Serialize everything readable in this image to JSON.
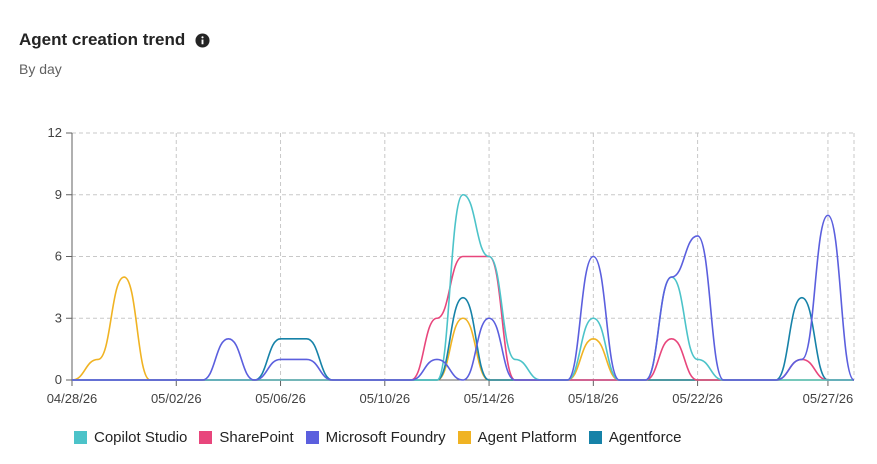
{
  "header": {
    "title": "Agent creation trend",
    "subtitle": "By day",
    "info_icon": "info-icon"
  },
  "chart_data": {
    "type": "line",
    "title": "Agent creation trend",
    "subtitle": "By day",
    "xlabel": "",
    "ylabel": "",
    "ylim": [
      0,
      12
    ],
    "yticks": [
      "0",
      "3",
      "6",
      "9",
      "12"
    ],
    "xticks": [
      {
        "date": "2026-04-28",
        "label": "04/28/26"
      },
      {
        "date": "2026-05-02",
        "label": "05/02/26"
      },
      {
        "date": "2026-05-06",
        "label": "05/06/26"
      },
      {
        "date": "2026-05-10",
        "label": "05/10/26"
      },
      {
        "date": "2026-05-14",
        "label": "05/14/26"
      },
      {
        "date": "2026-05-18",
        "label": "05/18/26"
      },
      {
        "date": "2026-05-22",
        "label": "05/22/26"
      },
      {
        "date": "2026-05-27",
        "label": "05/27/26"
      }
    ],
    "x": [
      "2026-04-28",
      "2026-04-29",
      "2026-04-30",
      "2026-05-01",
      "2026-05-02",
      "2026-05-03",
      "2026-05-04",
      "2026-05-05",
      "2026-05-06",
      "2026-05-07",
      "2026-05-08",
      "2026-05-09",
      "2026-05-10",
      "2026-05-11",
      "2026-05-12",
      "2026-05-13",
      "2026-05-14",
      "2026-05-15",
      "2026-05-16",
      "2026-05-17",
      "2026-05-18",
      "2026-05-19",
      "2026-05-20",
      "2026-05-21",
      "2026-05-22",
      "2026-05-23",
      "2026-05-24",
      "2026-05-25",
      "2026-05-26",
      "2026-05-27",
      "2026-05-28"
    ],
    "grid": true,
    "legend_position": "bottom",
    "series": [
      {
        "name": "Copilot Studio",
        "color": "#4cc3c9",
        "values": [
          0,
          0,
          0,
          0,
          0,
          0,
          0,
          0,
          0,
          0,
          0,
          0,
          0,
          0,
          0,
          9,
          6,
          1,
          0,
          0,
          3,
          0,
          0,
          5,
          1,
          0,
          0,
          0,
          0,
          0,
          0
        ]
      },
      {
        "name": "SharePoint",
        "color": "#e8467c",
        "values": [
          0,
          0,
          0,
          0,
          0,
          0,
          0,
          0,
          0,
          0,
          0,
          0,
          0,
          0,
          3,
          6,
          6,
          0,
          0,
          0,
          0,
          0,
          0,
          2,
          0,
          0,
          0,
          0,
          1,
          0,
          0
        ]
      },
      {
        "name": "Microsoft Foundry",
        "color": "#5b5fde",
        "values": [
          0,
          0,
          0,
          0,
          0,
          0,
          2,
          0,
          1,
          1,
          0,
          0,
          0,
          0,
          1,
          0,
          3,
          0,
          0,
          0,
          6,
          0,
          0,
          5,
          7,
          0,
          0,
          0,
          1,
          8,
          0
        ]
      },
      {
        "name": "Agent Platform",
        "color": "#f0b323",
        "values": [
          0,
          1,
          5,
          0,
          0,
          0,
          0,
          0,
          0,
          0,
          0,
          0,
          0,
          0,
          0,
          3,
          0,
          0,
          0,
          0,
          2,
          0,
          0,
          0,
          0,
          0,
          0,
          0,
          0,
          0,
          0
        ]
      },
      {
        "name": "Agentforce",
        "color": "#1682a8",
        "values": [
          0,
          0,
          0,
          0,
          0,
          0,
          0,
          0,
          2,
          2,
          0,
          0,
          0,
          0,
          0,
          4,
          0,
          0,
          0,
          0,
          0,
          0,
          0,
          0,
          0,
          0,
          0,
          0,
          4,
          0,
          0
        ]
      }
    ]
  }
}
